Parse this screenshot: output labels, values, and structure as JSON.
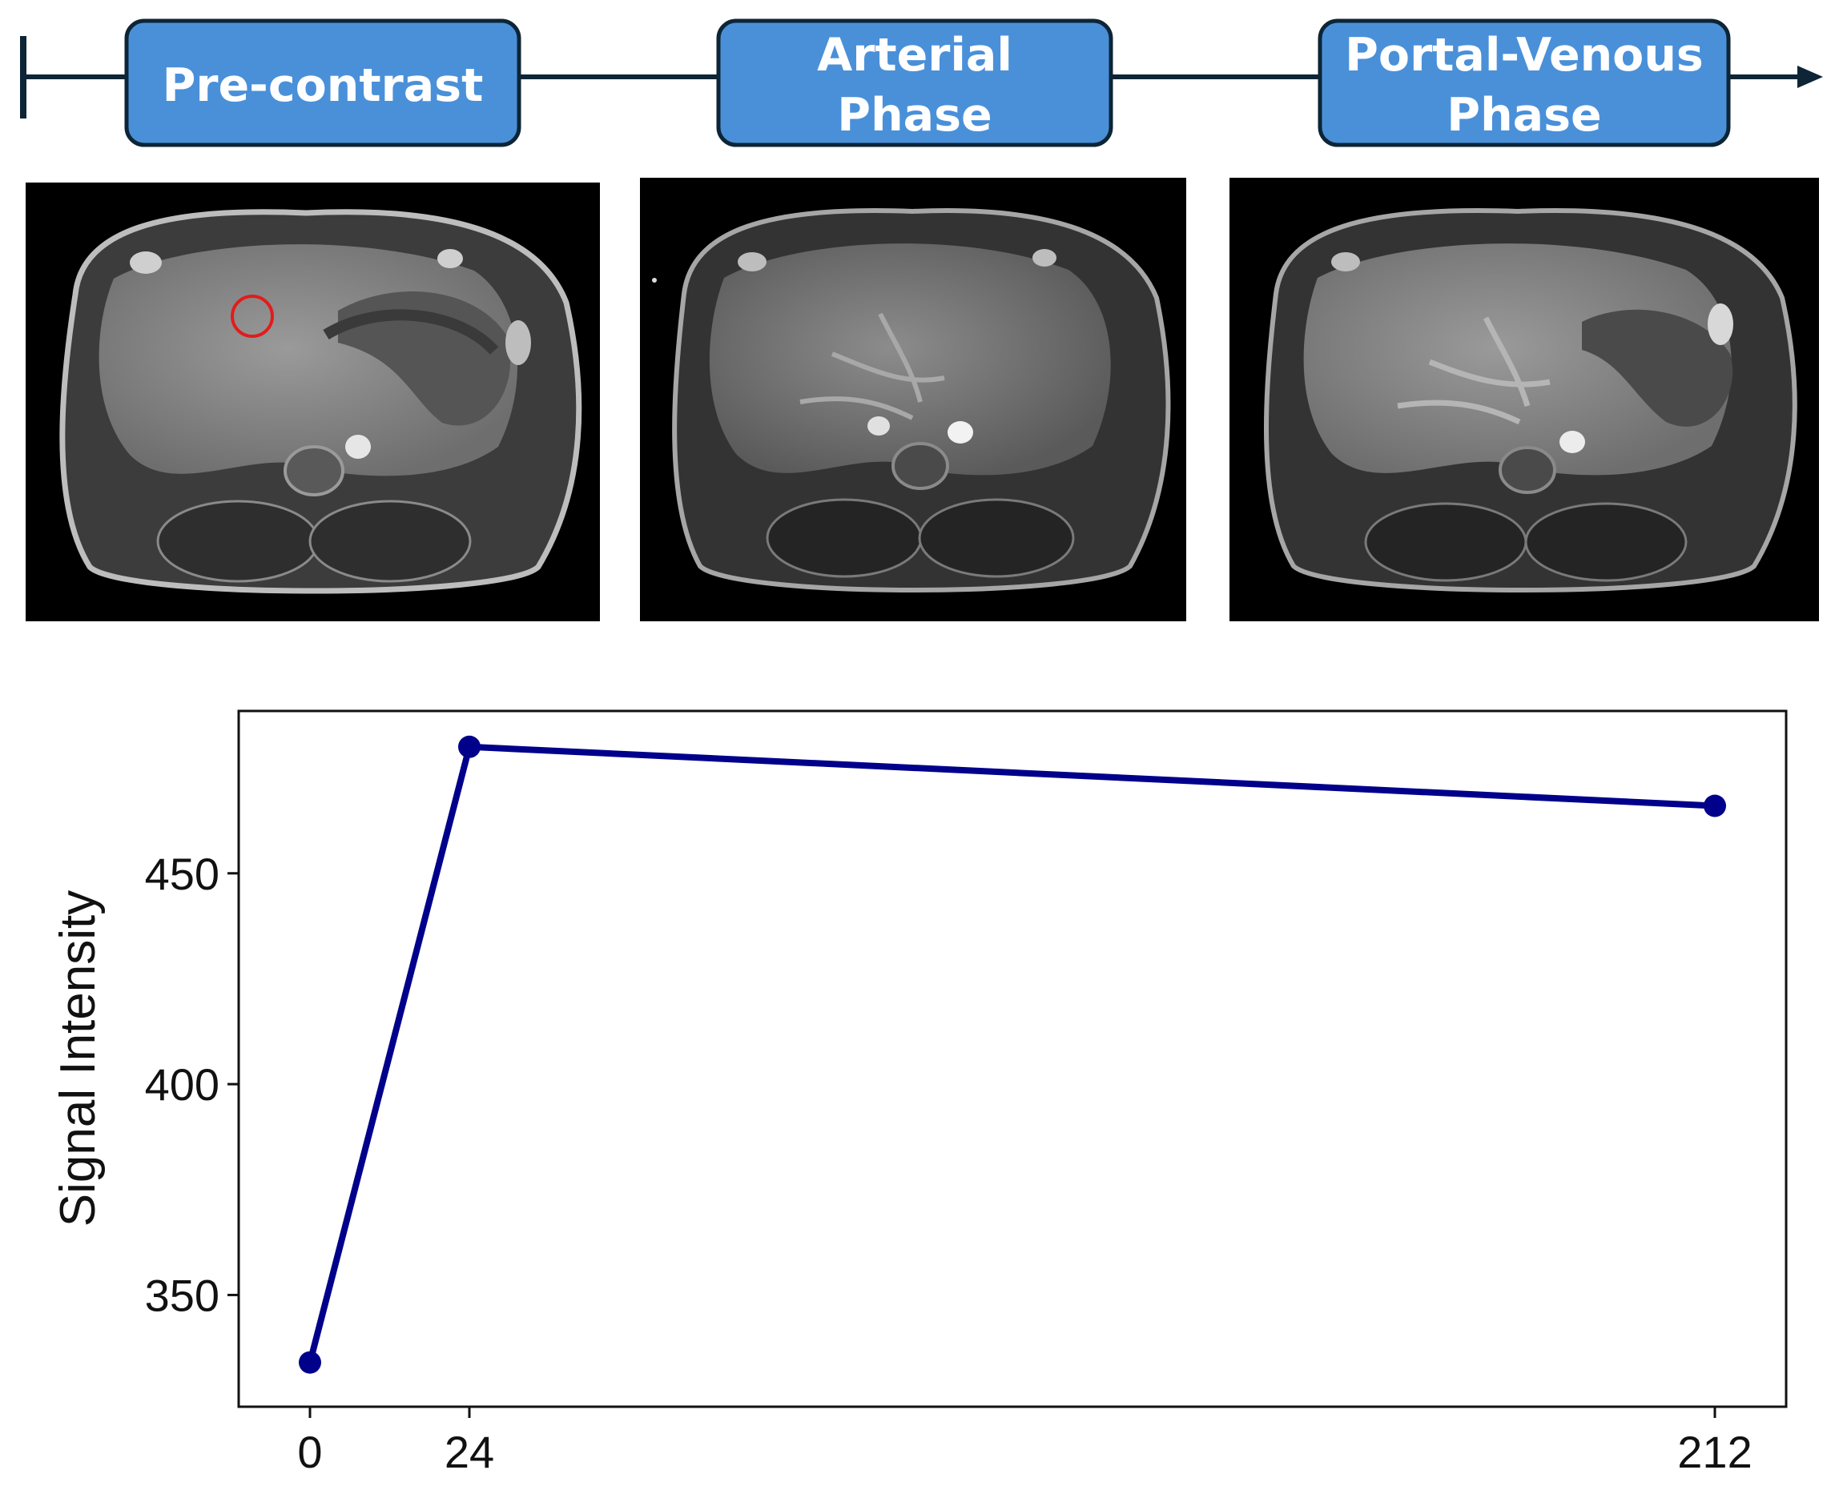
{
  "timeline": {
    "phases": [
      {
        "lines": [
          "Pre-contrast"
        ]
      },
      {
        "lines": [
          "Arterial",
          "Phase"
        ]
      },
      {
        "lines": [
          "Portal-Venous",
          "Phase"
        ]
      }
    ],
    "box_color": "#4a90d9",
    "line_color": "#0d2536"
  },
  "scans": [
    {
      "phase": "Pre-contrast",
      "roi_marker": true
    },
    {
      "phase": "Arterial Phase",
      "roi_marker": false
    },
    {
      "phase": "Portal-Venous Phase",
      "roi_marker": false
    }
  ],
  "chart_data": {
    "type": "line",
    "x": [
      0,
      24,
      212
    ],
    "series": [
      {
        "values": [
          334,
          480,
          466
        ],
        "color": "#00008b"
      }
    ],
    "xlabel": "",
    "ylabel": "Signal Intensity",
    "xticks": [
      0,
      24,
      212
    ],
    "yticks": [
      350,
      400,
      450
    ],
    "xlim": [
      -9.5,
      197
    ],
    "ylim": [
      323.5,
      488.5
    ],
    "grid": false
  }
}
